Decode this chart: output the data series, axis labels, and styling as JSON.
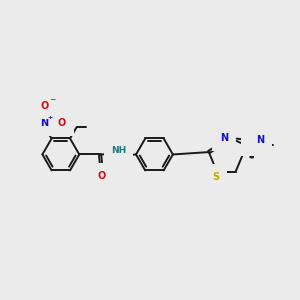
{
  "bg_color": "#ebebeb",
  "bond_color": "#1a1a1a",
  "N_color": "#1010cc",
  "O_color": "#cc1010",
  "S_color": "#bbaa00",
  "NH_color": "#227777",
  "fig_width": 3.0,
  "fig_height": 3.0,
  "dpi": 100,
  "lw": 1.4,
  "fs": 7.0,
  "ring_r": 0.62,
  "xlim": [
    0,
    10
  ],
  "ylim": [
    1,
    9
  ]
}
